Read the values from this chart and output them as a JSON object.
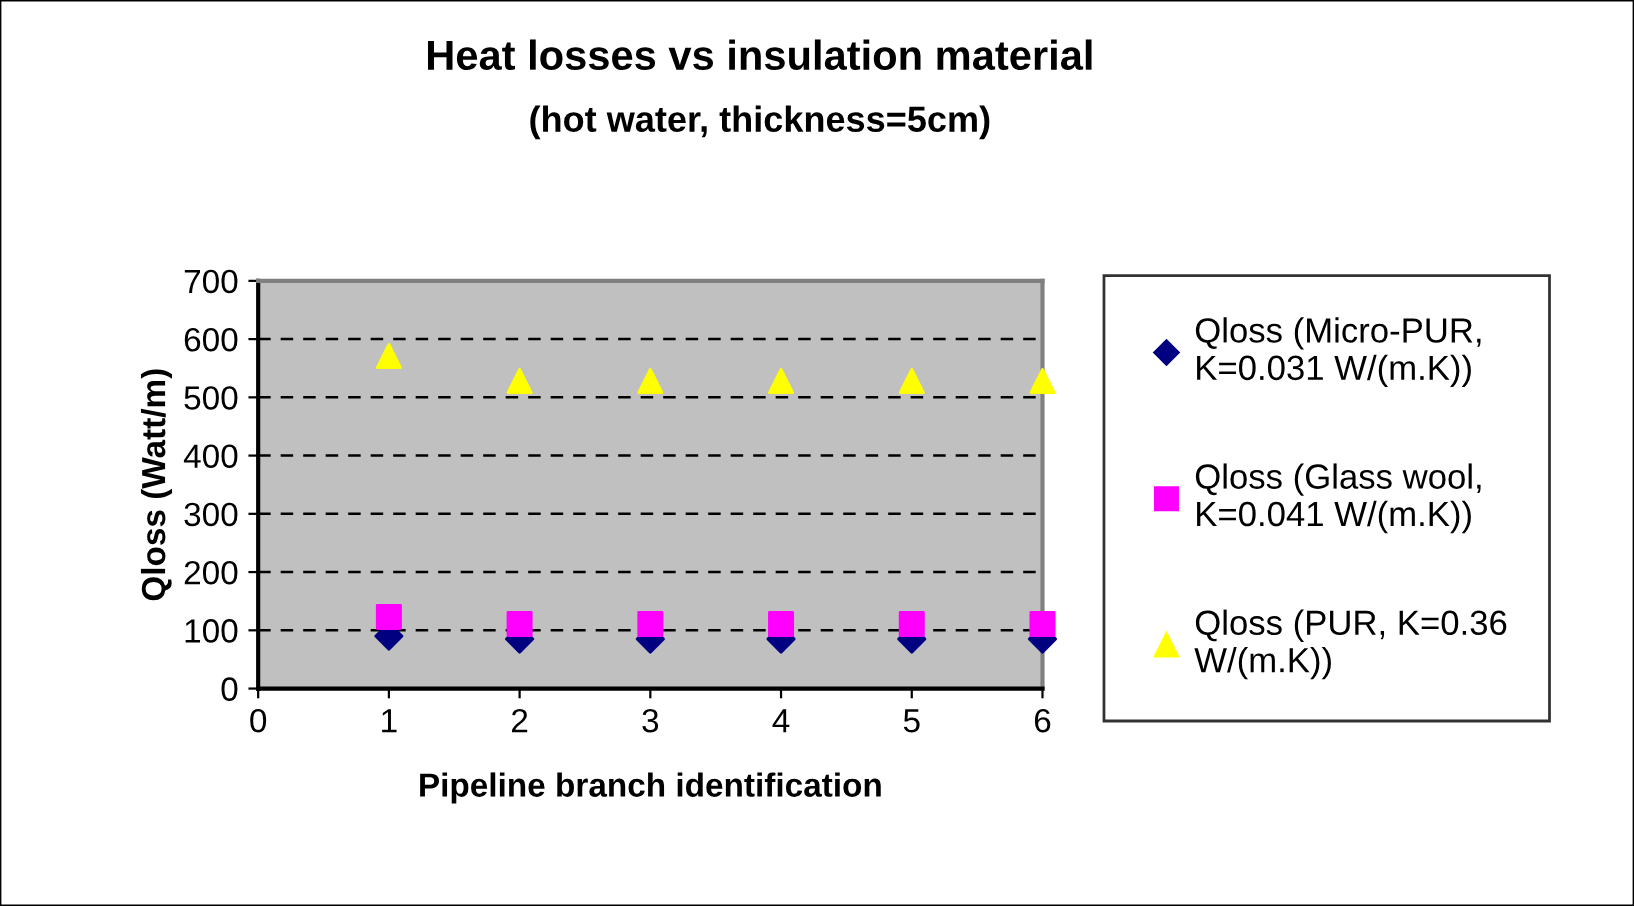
{
  "chart_data": {
    "type": "scatter",
    "title": "Heat losses vs insulation material",
    "subtitle": "(hot water, thickness=5cm)",
    "xlabel": "Pipeline branch identification",
    "ylabel": "Qloss (Watt/m)",
    "x": [
      1,
      2,
      3,
      4,
      5,
      6
    ],
    "series": [
      {
        "name": "Qloss (Micro-PUR,\nK=0.031 W/(m.K))",
        "color": "#000080",
        "marker": "diamond",
        "values": [
          90,
          85,
          85,
          85,
          85,
          85
        ]
      },
      {
        "name": "Qloss (Glass wool,\nK=0.041 W/(m.K))",
        "color": "#ff00ff",
        "marker": "square",
        "values": [
          123,
          111,
          111,
          111,
          111,
          111
        ]
      },
      {
        "name": "Qloss (PUR, K=0.36\nW/(m.K))",
        "color": "#ffff00",
        "marker": "triangle",
        "values": [
          571,
          528,
          528,
          528,
          528,
          528
        ]
      }
    ],
    "xlim": [
      0,
      6
    ],
    "xticks": [
      0,
      1,
      2,
      3,
      4,
      5,
      6
    ],
    "ylim": [
      0,
      700
    ],
    "yticks": [
      0,
      100,
      200,
      300,
      400,
      500,
      600,
      700
    ],
    "grid": "y",
    "legend": "right"
  }
}
